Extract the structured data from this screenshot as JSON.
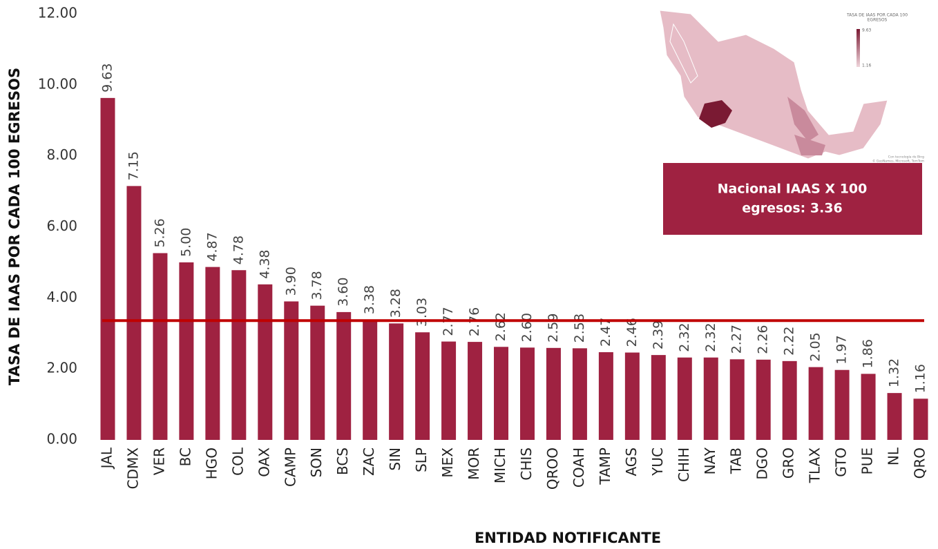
{
  "chart_data": {
    "type": "bar",
    "y_label": "TASA DE IAAS POR CADA 100 EGRESOS",
    "x_label": "ENTIDAD NOTIFICANTE",
    "categories": [
      "JAL",
      "CDMX",
      "VER",
      "BC",
      "HGO",
      "COL",
      "OAX",
      "CAMP",
      "SON",
      "BCS",
      "ZAC",
      "SIN",
      "SLP",
      "MEX",
      "MOR",
      "MICH",
      "CHIS",
      "QROO",
      "COAH",
      "TAMP",
      "AGS",
      "YUC",
      "CHIH",
      "NAY",
      "TAB",
      "DGO",
      "GRO",
      "TLAX",
      "GTO",
      "PUE",
      "NL",
      "QRO"
    ],
    "values": [
      9.63,
      7.15,
      5.26,
      5.0,
      4.87,
      4.78,
      4.38,
      3.9,
      3.78,
      3.6,
      3.38,
      3.28,
      3.03,
      2.77,
      2.76,
      2.62,
      2.6,
      2.59,
      2.58,
      2.47,
      2.46,
      2.39,
      2.32,
      2.32,
      2.27,
      2.26,
      2.22,
      2.05,
      1.97,
      1.86,
      1.32,
      1.16
    ],
    "value_labels": [
      "9.63",
      "7.15",
      "5.26",
      "5.00",
      "4.87",
      "4.78",
      "4.38",
      "3.90",
      "3.78",
      "3.60",
      "3.38",
      "3.28",
      "3.03",
      "2.77",
      "2.76",
      "2.62",
      "2.60",
      "2.59",
      "2.58",
      "2.47",
      "2.46",
      "2.39",
      "2.32",
      "2.32",
      "2.27",
      "2.26",
      "2.22",
      "2.05",
      "1.97",
      "1.86",
      "1.32",
      "1.16"
    ],
    "color": "#9f2241",
    "ylim": [
      0,
      12
    ],
    "yticks": [
      {
        "value": 0,
        "label": "0.00"
      },
      {
        "value": 2,
        "label": "2.00"
      },
      {
        "value": 4,
        "label": "4.00"
      },
      {
        "value": 6,
        "label": "6.00"
      },
      {
        "value": 8,
        "label": "8.00"
      },
      {
        "value": 10,
        "label": "10.00"
      },
      {
        "value": 12,
        "label": "12.00"
      }
    ],
    "grid": false,
    "reference_line": {
      "value": 3.36,
      "color": "#c00000"
    },
    "annotation": {
      "lines": [
        "Nacional IAAS X 100",
        "egresos: 3.36"
      ],
      "color": "#9f2241"
    },
    "map": {
      "legend_title": [
        "TASA DE IAAS POR CADA 100",
        "EGRESOS"
      ],
      "legend_max": "9.63",
      "legend_min": "1.16",
      "credits": [
        "Con tecnología de Bing",
        "© GeoNames, Microsoft, TomTom"
      ]
    }
  }
}
